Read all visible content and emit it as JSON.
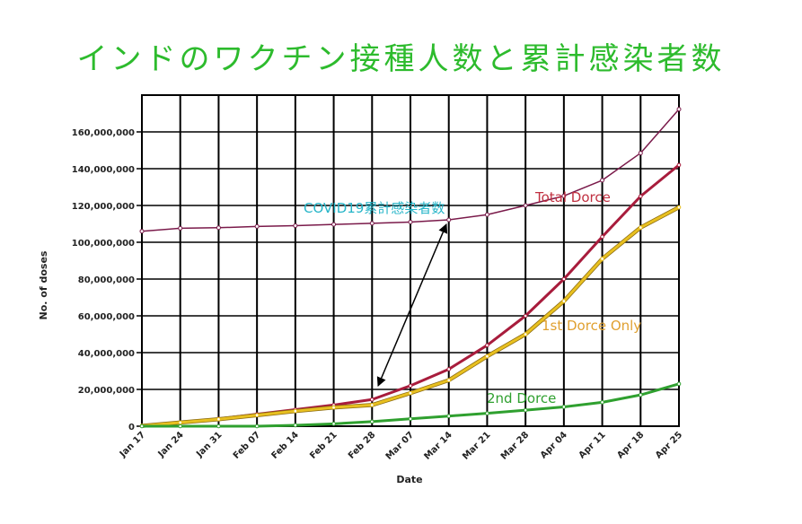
{
  "title": "インドのワクチン接種人数と累計感染者数",
  "chart_data": {
    "type": "line",
    "xlabel": "Date",
    "ylabel": "No. of doses",
    "categories": [
      "Jan 17",
      "Jan 24",
      "Jan 31",
      "Feb 07",
      "Feb 14",
      "Feb 21",
      "Feb 28",
      "Mar 07",
      "Mar 14",
      "Mar 21",
      "Mar 28",
      "Apr 04",
      "Apr 11",
      "Apr 18",
      "Apr 25"
    ],
    "ylim": [
      0,
      160000000
    ],
    "yticks": [
      0,
      20000000,
      40000000,
      60000000,
      80000000,
      100000000,
      120000000,
      140000000,
      160000000
    ],
    "ytick_labels": [
      "0",
      "20,000,000",
      "40,000,000",
      "60,000,000",
      "80,000,000",
      "100,000,000",
      "120,000,000",
      "140,000,000",
      "160,000,000"
    ],
    "grid": true,
    "series": [
      {
        "name": "COVID19累計感染者数",
        "color": "#7a1a4a",
        "values": [
          106000000,
          107600000,
          107900000,
          108600000,
          109000000,
          109700000,
          110300000,
          111000000,
          112200000,
          115000000,
          120000000,
          125200000,
          133700000,
          148500000,
          172300000
        ]
      },
      {
        "name": "Total Dorce",
        "color": "#a81c3c",
        "values": [
          200000,
          2000000,
          4000000,
          6500000,
          9000000,
          11500000,
          14500000,
          22000000,
          31000000,
          44000000,
          60000000,
          80000000,
          103000000,
          125000000,
          142000000
        ]
      },
      {
        "name": "1st Dorce Only",
        "color": "#e8c020",
        "values": [
          200000,
          2000000,
          3800000,
          6000000,
          8200000,
          10200000,
          11500000,
          18000000,
          25000000,
          38000000,
          50000000,
          68000000,
          91000000,
          108000000,
          119000000
        ]
      },
      {
        "name": "2nd Dorce",
        "color": "#2fa02f",
        "values": [
          0,
          0,
          0,
          0,
          500000,
          1300000,
          2500000,
          4000000,
          5500000,
          7000000,
          8700000,
          10500000,
          13000000,
          17000000,
          23000000
        ]
      }
    ],
    "annotations": [
      {
        "text": "COVID19累計感染者数",
        "color": "#26b5c8"
      },
      {
        "text": "Total Dorce",
        "color": "#c03040"
      },
      {
        "text": "1st Dorce Only",
        "color": "#e0a030"
      },
      {
        "text": "2nd Dorce",
        "color": "#2fa02f"
      }
    ]
  }
}
